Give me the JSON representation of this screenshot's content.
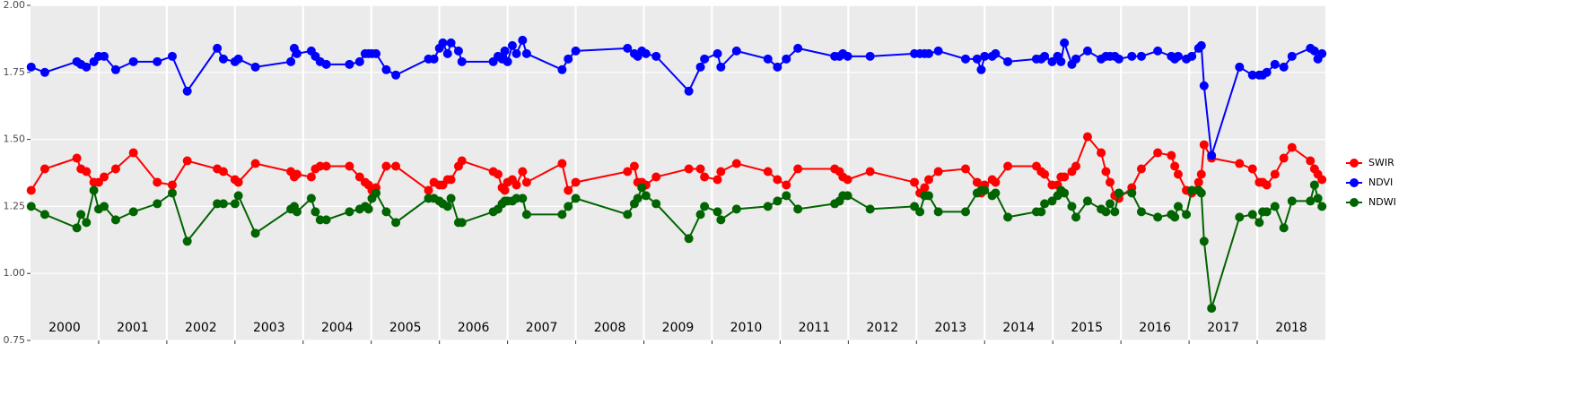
{
  "chart_data": {
    "type": "line",
    "xlim": [
      2000,
      2019
    ],
    "xticks": [
      2001,
      2002,
      2003,
      2004,
      2005,
      2006,
      2007,
      2008,
      2009,
      2010,
      2011,
      2012,
      2013,
      2014,
      2015,
      2016,
      2017,
      2018
    ],
    "year_labels": [
      2000,
      2001,
      2002,
      2003,
      2004,
      2005,
      2006,
      2007,
      2008,
      2009,
      2010,
      2011,
      2012,
      2013,
      2014,
      2015,
      2016,
      2017,
      2018
    ],
    "ylim": [
      0.75,
      2.0
    ],
    "yticks": [
      0.75,
      {
        "value": 1.0,
        "label": "1.00"
      },
      1.25,
      {
        "value": 1.5,
        "label": "1.50"
      },
      1.75,
      {
        "value": 2.0,
        "label": "2.00"
      }
    ],
    "grid": true,
    "legend": "right",
    "x": [
      2000.01,
      2000.21,
      2000.68,
      2000.74,
      2000.82,
      2000.93,
      2001.0,
      2001.08,
      2001.25,
      2001.51,
      2001.86,
      2002.08,
      2002.3,
      2002.74,
      2002.83,
      2003.0,
      2003.05,
      2003.3,
      2003.82,
      2003.87,
      2003.91,
      2004.12,
      2004.18,
      2004.25,
      2004.34,
      2004.68,
      2004.83,
      2004.91,
      2004.96,
      2005.01,
      2005.07,
      2005.22,
      2005.36,
      2005.84,
      2005.92,
      2006.0,
      2006.05,
      2006.12,
      2006.17,
      2006.28,
      2006.33,
      2006.79,
      2006.86,
      2006.92,
      2006.96,
      2007.0,
      2007.07,
      2007.13,
      2007.22,
      2007.28,
      2007.8,
      2007.89,
      2008.0,
      2008.76,
      2008.86,
      2008.91,
      2008.97,
      2009.03,
      2009.18,
      2009.66,
      2009.83,
      2009.89,
      2010.08,
      2010.13,
      2010.36,
      2010.82,
      2010.96,
      2011.09,
      2011.26,
      2011.8,
      2011.87,
      2011.92,
      2011.99,
      2012.32,
      2012.97,
      2013.05,
      2013.12,
      2013.18,
      2013.32,
      2013.72,
      2013.89,
      2013.95,
      2014.0,
      2014.11,
      2014.16,
      2014.34,
      2014.76,
      2014.83,
      2014.88,
      2014.99,
      2015.07,
      2015.12,
      2015.17,
      2015.28,
      2015.34,
      2015.51,
      2015.71,
      2015.78,
      2015.84,
      2015.91,
      2015.97,
      2016.16,
      2016.3,
      2016.54,
      2016.74,
      2016.79,
      2016.84,
      2016.96,
      2017.04,
      2017.14,
      2017.18,
      2017.22,
      2017.33,
      2017.74,
      2017.93,
      2018.03,
      2018.08,
      2018.14,
      2018.26,
      2018.39,
      2018.51,
      2018.78,
      2018.84,
      2018.89,
      2018.95
    ],
    "series": [
      {
        "name": "SWIR",
        "color": "#ff0000",
        "values": [
          1.31,
          1.39,
          1.43,
          1.39,
          1.38,
          1.34,
          1.34,
          1.36,
          1.39,
          1.45,
          1.34,
          1.33,
          1.42,
          1.39,
          1.38,
          1.35,
          1.34,
          1.41,
          1.38,
          1.36,
          1.37,
          1.36,
          1.39,
          1.4,
          1.4,
          1.4,
          1.36,
          1.34,
          1.33,
          1.31,
          1.32,
          1.4,
          1.4,
          1.31,
          1.34,
          1.33,
          1.33,
          1.35,
          1.35,
          1.4,
          1.42,
          1.38,
          1.37,
          1.32,
          1.31,
          1.34,
          1.35,
          1.33,
          1.38,
          1.34,
          1.41,
          1.31,
          1.34,
          1.38,
          1.4,
          1.34,
          1.34,
          1.33,
          1.36,
          1.39,
          1.39,
          1.36,
          1.35,
          1.38,
          1.41,
          1.38,
          1.35,
          1.33,
          1.39,
          1.39,
          1.38,
          1.36,
          1.35,
          1.38,
          1.34,
          1.3,
          1.32,
          1.35,
          1.38,
          1.39,
          1.34,
          1.3,
          1.33,
          1.35,
          1.34,
          1.4,
          1.4,
          1.38,
          1.37,
          1.33,
          1.33,
          1.36,
          1.36,
          1.38,
          1.4,
          1.51,
          1.45,
          1.38,
          1.34,
          1.29,
          1.28,
          1.32,
          1.39,
          1.45,
          1.44,
          1.4,
          1.37,
          1.31,
          1.3,
          1.34,
          1.37,
          1.48,
          1.43,
          1.41,
          1.39,
          1.34,
          1.34,
          1.33,
          1.37,
          1.43,
          1.47,
          1.42,
          1.39,
          1.37,
          1.35
        ]
      },
      {
        "name": "NDVI",
        "color": "#0000ff",
        "values": [
          1.77,
          1.75,
          1.79,
          1.78,
          1.77,
          1.79,
          1.81,
          1.81,
          1.76,
          1.79,
          1.79,
          1.81,
          1.68,
          1.84,
          1.8,
          1.79,
          1.8,
          1.77,
          1.79,
          1.84,
          1.82,
          1.83,
          1.81,
          1.79,
          1.78,
          1.78,
          1.79,
          1.82,
          1.82,
          1.82,
          1.82,
          1.76,
          1.74,
          1.8,
          1.8,
          1.84,
          1.86,
          1.82,
          1.86,
          1.83,
          1.79,
          1.79,
          1.81,
          1.8,
          1.83,
          1.79,
          1.85,
          1.82,
          1.87,
          1.82,
          1.76,
          1.8,
          1.83,
          1.84,
          1.82,
          1.81,
          1.83,
          1.82,
          1.81,
          1.68,
          1.77,
          1.8,
          1.82,
          1.77,
          1.83,
          1.8,
          1.77,
          1.8,
          1.84,
          1.81,
          1.81,
          1.82,
          1.81,
          1.81,
          1.82,
          1.82,
          1.82,
          1.82,
          1.83,
          1.8,
          1.8,
          1.76,
          1.81,
          1.81,
          1.82,
          1.79,
          1.8,
          1.8,
          1.81,
          1.79,
          1.81,
          1.79,
          1.86,
          1.78,
          1.8,
          1.83,
          1.8,
          1.81,
          1.81,
          1.81,
          1.8,
          1.81,
          1.81,
          1.83,
          1.81,
          1.8,
          1.81,
          1.8,
          1.81,
          1.84,
          1.85,
          1.7,
          1.44,
          1.77,
          1.74,
          1.74,
          1.74,
          1.75,
          1.78,
          1.77,
          1.81,
          1.84,
          1.83,
          1.8,
          1.82
        ]
      },
      {
        "name": "NDWI",
        "color": "#006400",
        "values": [
          1.25,
          1.22,
          1.17,
          1.22,
          1.19,
          1.31,
          1.24,
          1.25,
          1.2,
          1.23,
          1.26,
          1.3,
          1.12,
          1.26,
          1.26,
          1.26,
          1.29,
          1.15,
          1.24,
          1.25,
          1.23,
          1.28,
          1.23,
          1.2,
          1.2,
          1.23,
          1.24,
          1.25,
          1.24,
          1.28,
          1.3,
          1.23,
          1.19,
          1.28,
          1.28,
          1.27,
          1.26,
          1.25,
          1.28,
          1.19,
          1.19,
          1.23,
          1.24,
          1.26,
          1.27,
          1.27,
          1.27,
          1.28,
          1.28,
          1.22,
          1.22,
          1.25,
          1.28,
          1.22,
          1.26,
          1.28,
          1.32,
          1.29,
          1.26,
          1.13,
          1.22,
          1.25,
          1.23,
          1.2,
          1.24,
          1.25,
          1.27,
          1.29,
          1.24,
          1.26,
          1.27,
          1.29,
          1.29,
          1.24,
          1.25,
          1.23,
          1.29,
          1.29,
          1.23,
          1.23,
          1.3,
          1.31,
          1.31,
          1.29,
          1.3,
          1.21,
          1.23,
          1.23,
          1.26,
          1.27,
          1.29,
          1.31,
          1.3,
          1.25,
          1.21,
          1.27,
          1.24,
          1.23,
          1.26,
          1.23,
          1.3,
          1.3,
          1.23,
          1.21,
          1.22,
          1.21,
          1.25,
          1.22,
          1.31,
          1.31,
          1.3,
          1.12,
          0.87,
          1.21,
          1.22,
          1.19,
          1.23,
          1.23,
          1.25,
          1.17,
          1.27,
          1.27,
          1.33,
          1.28,
          1.25
        ]
      }
    ]
  }
}
